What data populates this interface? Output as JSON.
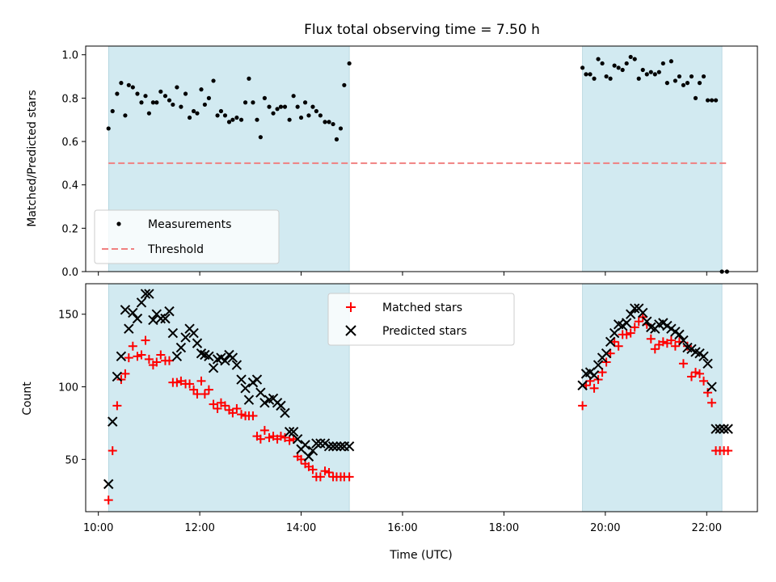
{
  "title": "Flux total observing time = 7.50 h",
  "colors": {
    "shade": "#add8e6",
    "measurement": "#000000",
    "threshold": "#f08080",
    "matched": "#ff0000",
    "predicted": "#000000"
  },
  "chart_data": [
    {
      "type": "scatter",
      "ylabel": "Matched/Predicted stars",
      "xlim": [
        9.75,
        23.0
      ],
      "ylim": [
        0.0,
        1.04
      ],
      "y_ticks": [
        0.0,
        0.2,
        0.4,
        0.6,
        0.8,
        1.0
      ],
      "y_tick_labels": [
        "0.0",
        "0.2",
        "0.4",
        "0.6",
        "0.8",
        "1.0"
      ],
      "shaded_spans": [
        [
          10.2,
          14.95
        ],
        [
          19.55,
          22.3
        ]
      ],
      "threshold": 0.5,
      "threshold_range": [
        10.2,
        22.4
      ],
      "legend": {
        "position": "lower-left",
        "entries": [
          "Measurements",
          "Threshold"
        ]
      },
      "series": [
        {
          "name": "Measurements",
          "x": [
            10.2,
            10.28,
            10.37,
            10.45,
            10.53,
            10.6,
            10.68,
            10.77,
            10.85,
            10.93,
            11.0,
            11.08,
            11.15,
            11.23,
            11.32,
            11.4,
            11.47,
            11.55,
            11.63,
            11.72,
            11.8,
            11.88,
            11.95,
            12.03,
            12.1,
            12.18,
            12.27,
            12.35,
            12.42,
            12.5,
            12.58,
            12.65,
            12.73,
            12.82,
            12.9,
            12.97,
            13.05,
            13.13,
            13.2,
            13.28,
            13.37,
            13.45,
            13.53,
            13.6,
            13.68,
            13.77,
            13.85,
            13.93,
            14.0,
            14.08,
            14.15,
            14.23,
            14.3,
            14.38,
            14.47,
            14.55,
            14.63,
            14.7,
            14.78,
            14.85,
            14.95,
            19.55,
            19.62,
            19.7,
            19.78,
            19.86,
            19.94,
            20.02,
            20.1,
            20.18,
            20.26,
            20.34,
            20.42,
            20.5,
            20.58,
            20.66,
            20.74,
            20.82,
            20.9,
            20.98,
            21.06,
            21.14,
            21.22,
            21.3,
            21.38,
            21.46,
            21.54,
            21.62,
            21.7,
            21.78,
            21.86,
            21.94,
            22.02,
            22.1,
            22.18,
            22.3,
            22.4
          ],
          "y": [
            0.66,
            0.74,
            0.82,
            0.87,
            0.72,
            0.86,
            0.85,
            0.82,
            0.78,
            0.81,
            0.73,
            0.78,
            0.78,
            0.83,
            0.81,
            0.79,
            0.77,
            0.85,
            0.76,
            0.82,
            0.71,
            0.74,
            0.73,
            0.84,
            0.77,
            0.8,
            0.88,
            0.72,
            0.74,
            0.72,
            0.69,
            0.7,
            0.71,
            0.7,
            0.78,
            0.89,
            0.78,
            0.7,
            0.62,
            0.8,
            0.76,
            0.73,
            0.75,
            0.76,
            0.76,
            0.7,
            0.81,
            0.76,
            0.71,
            0.78,
            0.72,
            0.76,
            0.74,
            0.72,
            0.69,
            0.69,
            0.68,
            0.61,
            0.66,
            0.86,
            0.96,
            0.94,
            0.91,
            0.91,
            0.89,
            0.98,
            0.96,
            0.9,
            0.89,
            0.95,
            0.94,
            0.93,
            0.96,
            0.99,
            0.98,
            0.89,
            0.93,
            0.91,
            0.92,
            0.91,
            0.92,
            0.96,
            0.87,
            0.97,
            0.88,
            0.9,
            0.86,
            0.87,
            0.9,
            0.8,
            0.87,
            0.9,
            0.79,
            0.79,
            0.79,
            0.0,
            0.0
          ]
        }
      ]
    },
    {
      "type": "scatter",
      "xlabel": "Time (UTC)",
      "ylabel": "Count",
      "xlim": [
        9.75,
        23.0
      ],
      "ylim": [
        14,
        171
      ],
      "y_ticks": [
        50,
        100,
        150
      ],
      "y_tick_labels": [
        "50",
        "100",
        "150"
      ],
      "x_ticks": [
        10,
        12,
        14,
        16,
        18,
        20,
        22
      ],
      "x_tick_labels": [
        "10:00",
        "12:00",
        "14:00",
        "16:00",
        "18:00",
        "20:00",
        "22:00"
      ],
      "shaded_spans": [
        [
          10.2,
          14.95
        ],
        [
          19.55,
          22.3
        ]
      ],
      "legend": {
        "position": "upper-center",
        "entries": [
          "Matched stars",
          "Predicted stars"
        ]
      },
      "series": [
        {
          "name": "Matched stars",
          "marker": "plus",
          "x": [
            10.2,
            10.28,
            10.37,
            10.45,
            10.53,
            10.6,
            10.68,
            10.77,
            10.85,
            10.93,
            11.0,
            11.08,
            11.15,
            11.23,
            11.32,
            11.4,
            11.47,
            11.55,
            11.63,
            11.72,
            11.8,
            11.88,
            11.95,
            12.03,
            12.1,
            12.18,
            12.27,
            12.35,
            12.42,
            12.5,
            12.58,
            12.65,
            12.73,
            12.82,
            12.9,
            12.97,
            13.05,
            13.13,
            13.2,
            13.28,
            13.37,
            13.45,
            13.53,
            13.6,
            13.68,
            13.77,
            13.85,
            13.93,
            14.0,
            14.08,
            14.15,
            14.23,
            14.3,
            14.38,
            14.47,
            14.55,
            14.63,
            14.7,
            14.78,
            14.85,
            14.95,
            19.55,
            19.62,
            19.7,
            19.78,
            19.86,
            19.94,
            20.02,
            20.1,
            20.18,
            20.26,
            20.34,
            20.42,
            20.5,
            20.58,
            20.66,
            20.74,
            20.82,
            20.9,
            20.98,
            21.06,
            21.14,
            21.22,
            21.3,
            21.38,
            21.46,
            21.54,
            21.62,
            21.7,
            21.78,
            21.86,
            21.94,
            22.02,
            22.1,
            22.18,
            22.26,
            22.34,
            22.42
          ],
          "y": [
            22,
            56,
            87,
            105,
            109,
            120,
            128,
            121,
            122,
            132,
            119,
            115,
            117,
            122,
            118,
            118,
            103,
            103,
            104,
            102,
            102,
            98,
            95,
            104,
            95,
            98,
            88,
            85,
            89,
            87,
            84,
            82,
            85,
            81,
            80,
            80,
            80,
            66,
            64,
            70,
            65,
            66,
            64,
            66,
            65,
            63,
            64,
            52,
            50,
            47,
            45,
            43,
            38,
            38,
            42,
            41,
            38,
            38,
            38,
            38,
            38,
            87,
            101,
            104,
            99,
            105,
            110,
            117,
            123,
            131,
            128,
            136,
            136,
            137,
            141,
            145,
            148,
            143,
            133,
            126,
            129,
            131,
            130,
            132,
            128,
            131,
            116,
            128,
            107,
            110,
            109,
            104,
            96,
            89,
            56,
            56,
            56,
            56
          ]
        },
        {
          "name": "Predicted stars",
          "marker": "x",
          "x": [
            10.2,
            10.28,
            10.37,
            10.45,
            10.53,
            10.6,
            10.68,
            10.77,
            10.85,
            10.93,
            11.0,
            11.08,
            11.15,
            11.23,
            11.32,
            11.4,
            11.47,
            11.55,
            11.63,
            11.72,
            11.8,
            11.88,
            11.95,
            12.03,
            12.1,
            12.18,
            12.27,
            12.35,
            12.42,
            12.5,
            12.58,
            12.65,
            12.73,
            12.82,
            12.9,
            12.97,
            13.05,
            13.13,
            13.2,
            13.28,
            13.37,
            13.45,
            13.53,
            13.6,
            13.68,
            13.77,
            13.85,
            13.93,
            14.0,
            14.08,
            14.15,
            14.23,
            14.3,
            14.38,
            14.47,
            14.55,
            14.63,
            14.7,
            14.78,
            14.85,
            14.95,
            19.55,
            19.62,
            19.7,
            19.78,
            19.86,
            19.94,
            20.02,
            20.1,
            20.18,
            20.26,
            20.34,
            20.42,
            20.5,
            20.58,
            20.66,
            20.74,
            20.82,
            20.9,
            20.98,
            21.06,
            21.14,
            21.22,
            21.3,
            21.38,
            21.46,
            21.54,
            21.62,
            21.7,
            21.78,
            21.86,
            21.94,
            22.02,
            22.1,
            22.18,
            22.26,
            22.34,
            22.42
          ],
          "y": [
            33,
            76,
            107,
            121,
            153,
            140,
            151,
            147,
            158,
            164,
            164,
            146,
            150,
            147,
            147,
            152,
            137,
            121,
            127,
            134,
            140,
            137,
            130,
            123,
            122,
            121,
            113,
            119,
            120,
            118,
            122,
            120,
            115,
            105,
            99,
            91,
            103,
            105,
            96,
            89,
            91,
            92,
            89,
            87,
            82,
            69,
            69,
            64,
            57,
            60,
            52,
            56,
            61,
            61,
            61,
            59,
            59,
            59,
            59,
            59,
            59,
            101,
            109,
            110,
            108,
            115,
            120,
            123,
            131,
            137,
            143,
            142,
            144,
            150,
            154,
            154,
            151,
            145,
            141,
            140,
            143,
            144,
            142,
            140,
            138,
            136,
            132,
            127,
            126,
            124,
            123,
            121,
            116,
            100,
            71,
            71,
            71,
            71
          ]
        }
      ]
    }
  ]
}
